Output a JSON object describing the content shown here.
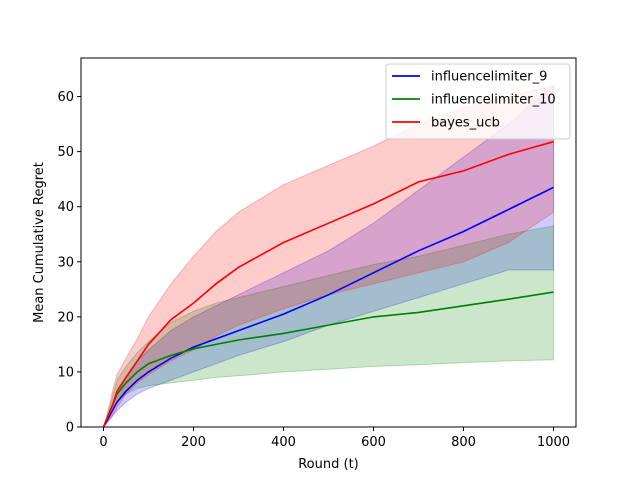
{
  "chart_data": {
    "type": "line",
    "title": "",
    "xlabel": "Round (t)",
    "ylabel": "Mean Cumulative Regret",
    "xlim": [
      -50,
      1050
    ],
    "ylim": [
      0,
      67
    ],
    "xticks": [
      0,
      200,
      400,
      600,
      800,
      1000
    ],
    "yticks": [
      0,
      10,
      20,
      30,
      40,
      50,
      60
    ],
    "grid": false,
    "legend_position": "top-right",
    "x": [
      0,
      10,
      20,
      30,
      50,
      75,
      100,
      150,
      200,
      250,
      300,
      400,
      500,
      600,
      700,
      800,
      900,
      1000
    ],
    "series": [
      {
        "name": "influencelimiter_9",
        "color": "#0000ff",
        "values": [
          0,
          1.5,
          3,
          4.5,
          6.5,
          8.5,
          10,
          12.5,
          14.5,
          16,
          17.5,
          20.5,
          24,
          28,
          32,
          35.5,
          39.5,
          43.5
        ],
        "lower": [
          0,
          1,
          2,
          3,
          4.5,
          6,
          7,
          8.5,
          10,
          11.5,
          13,
          15.5,
          18.5,
          21,
          23.5,
          26,
          28.5,
          28.5
        ],
        "upper": [
          0,
          2,
          4,
          6,
          9,
          12,
          14,
          17.5,
          20,
          22,
          24,
          28,
          32,
          37,
          43,
          49,
          55,
          62
        ]
      },
      {
        "name": "influencelimiter_10",
        "color": "#008000",
        "values": [
          0,
          2,
          4,
          6,
          8,
          10,
          11.5,
          13,
          14.2,
          15,
          15.8,
          17,
          18.5,
          20,
          20.8,
          22,
          23.2,
          24.5
        ],
        "lower": [
          0,
          1.5,
          3,
          4.5,
          6,
          7,
          7.5,
          8,
          8.5,
          9,
          9.3,
          10,
          10.5,
          11,
          11.3,
          11.7,
          12,
          12.2
        ],
        "upper": [
          0,
          2.5,
          5.5,
          8.5,
          11,
          13.5,
          15.5,
          19,
          21,
          22.5,
          23.5,
          25.5,
          27.5,
          29.5,
          31,
          33,
          35,
          36.5
        ]
      },
      {
        "name": "bayes_ucb",
        "color": "#ff0000",
        "values": [
          0,
          2,
          4,
          6.5,
          9,
          12,
          15,
          19.5,
          22.5,
          26,
          29,
          33.5,
          37,
          40.5,
          44.5,
          46.5,
          49.5,
          51.8
        ],
        "lower": [
          0,
          1,
          2,
          3.5,
          6,
          8,
          9.5,
          12,
          14,
          16.5,
          18.5,
          21.5,
          24,
          26,
          28,
          30,
          33.5,
          39
        ],
        "upper": [
          0,
          3,
          6.5,
          9.5,
          12.5,
          16,
          20,
          26,
          31,
          35.5,
          39,
          44,
          47.5,
          51,
          55,
          58,
          60,
          62
        ]
      }
    ]
  }
}
